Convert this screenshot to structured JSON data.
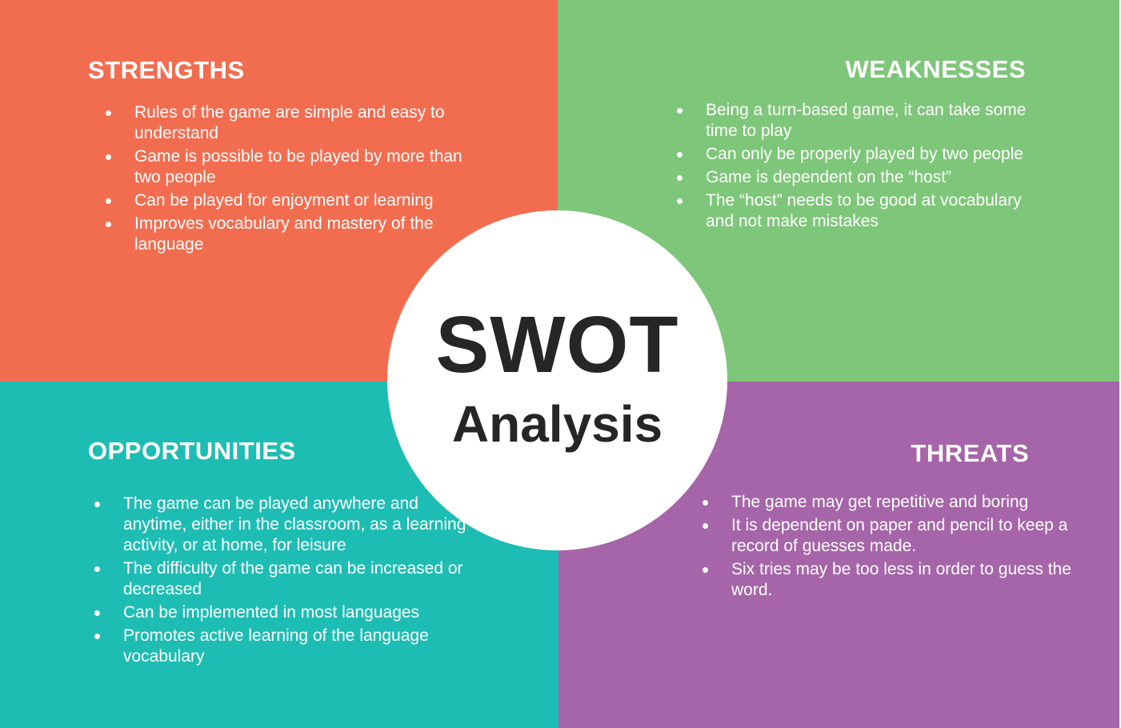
{
  "colors": {
    "strengths": "#f26d50",
    "weaknesses": "#7ec679",
    "opportunities": "#1dbdb4",
    "threats": "#a565a8",
    "center_text": "#262626"
  },
  "center": {
    "title": "SWOT",
    "subtitle": "Analysis"
  },
  "strengths": {
    "heading": "STRENGTHS",
    "items": [
      "Rules of the game are simple and easy to understand",
      "Game is possible to be played by more than two people",
      "Can be played for enjoyment or learning",
      "Improves vocabulary and mastery of the language"
    ]
  },
  "weaknesses": {
    "heading": "WEAKNESSES",
    "items": [
      "Being a turn-based game, it can take some time to play",
      "Can only be properly played by two people",
      "Game is dependent on the “host”",
      "The “host” needs to be good at vocabulary and not make mistakes"
    ]
  },
  "opportunities": {
    "heading": "OPPORTUNITIES",
    "items": [
      "The game can be played anywhere and anytime, either in the classroom, as a learning activity, or at home, for leisure",
      "The difficulty of the game can be increased or decreased",
      "Can be implemented in most languages",
      "Promotes active learning of the language vocabulary"
    ]
  },
  "threats": {
    "heading": "THREATS",
    "items": [
      "The game may get repetitive and boring",
      "It is dependent on paper and pencil to keep a record of guesses made.",
      "Six tries may be too less in order to guess the word."
    ]
  }
}
